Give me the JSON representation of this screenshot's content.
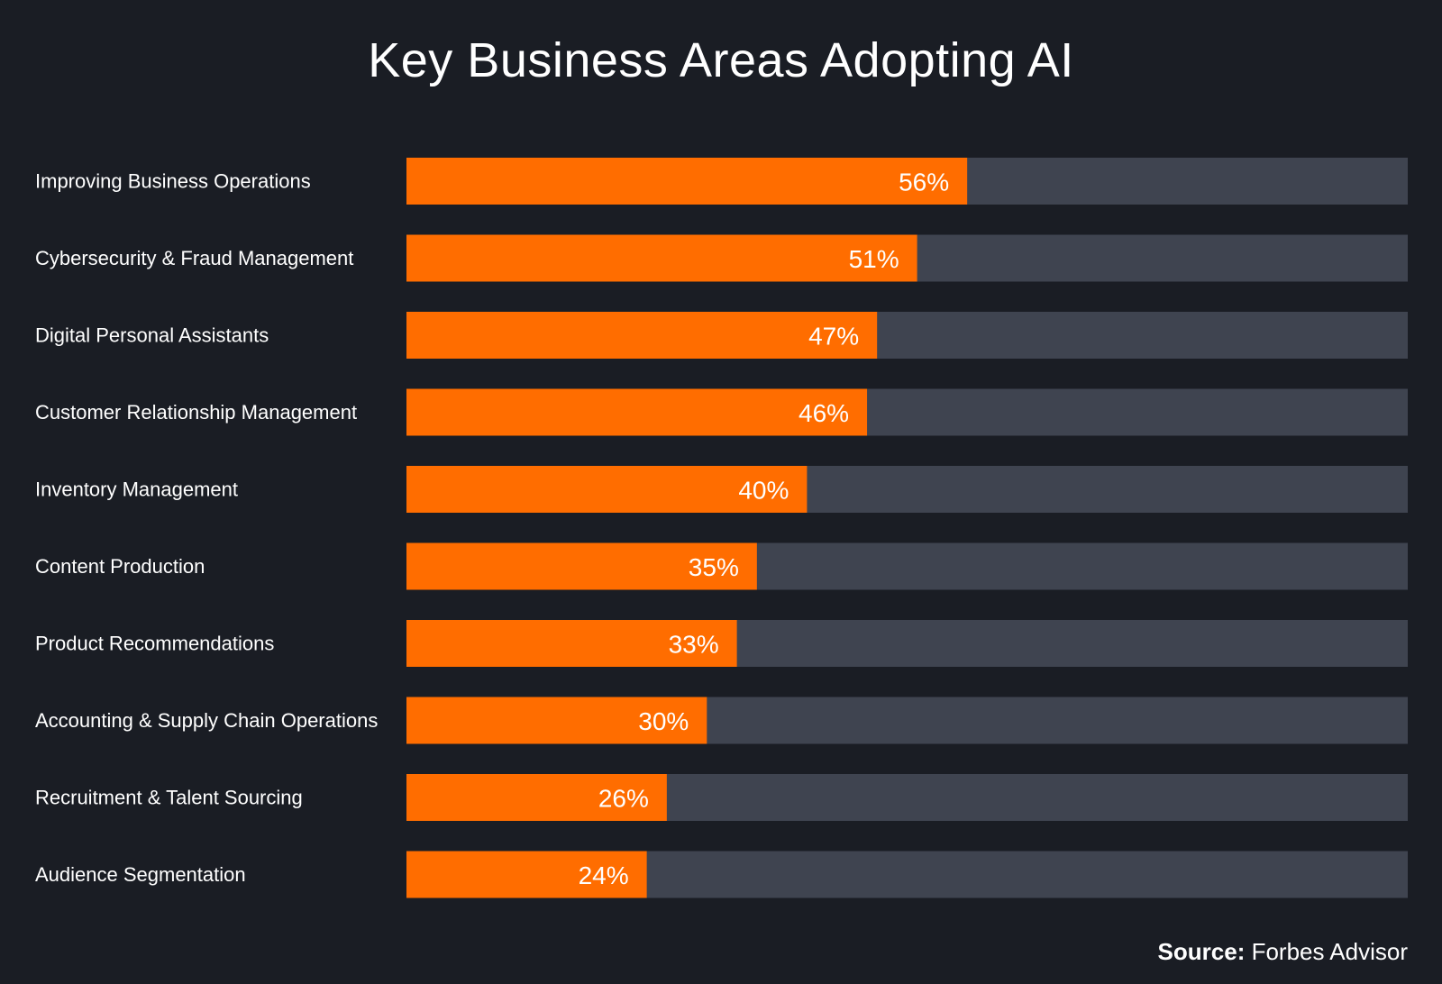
{
  "chart_data": {
    "type": "bar",
    "orientation": "horizontal",
    "title": "Key Business Areas Adopting AI",
    "categories": [
      "Improving Business Operations",
      "Cybersecurity & Fraud Management",
      "Digital Personal Assistants",
      "Customer Relationship Management",
      "Inventory Management",
      "Content Production",
      "Product Recommendations",
      "Accounting & Supply Chain Operations",
      "Recruitment & Talent Sourcing",
      "Audience Segmentation"
    ],
    "values": [
      56,
      51,
      47,
      46,
      40,
      35,
      33,
      30,
      26,
      24
    ],
    "value_labels": [
      "56%",
      "51%",
      "47%",
      "46%",
      "40%",
      "35%",
      "33%",
      "30%",
      "26%",
      "24%"
    ],
    "xlim": [
      0,
      100
    ],
    "unit": "%",
    "grid": false,
    "xlabel": "",
    "ylabel": "",
    "colors": {
      "bar": "#ff6d00",
      "track": "#3f4450",
      "background": "#1a1d24",
      "text": "#ffffff"
    }
  },
  "source": {
    "prefix": "Source:",
    "text": " Forbes Advisor"
  }
}
